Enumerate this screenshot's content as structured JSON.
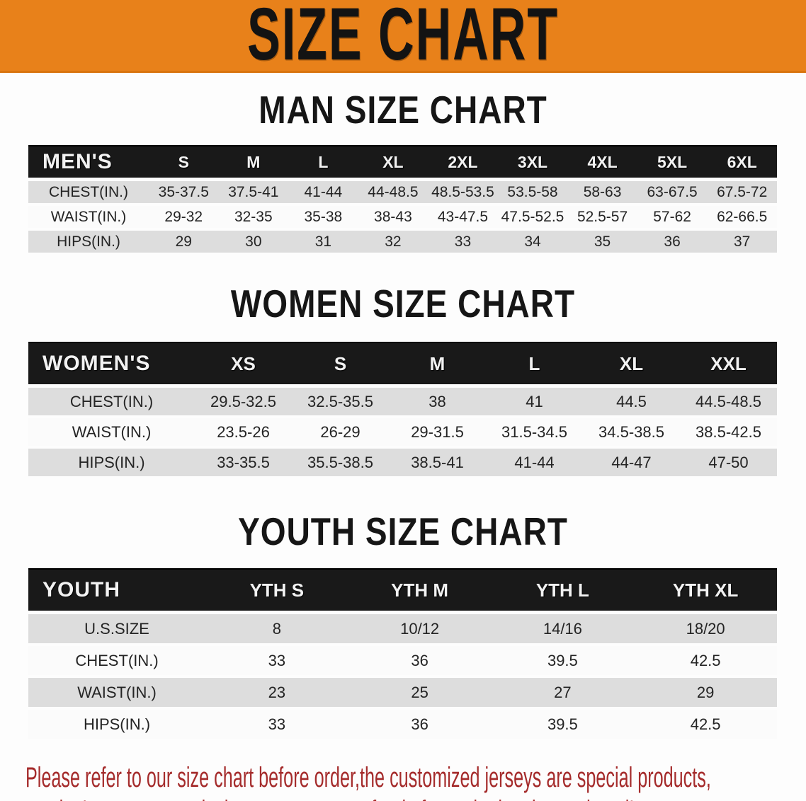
{
  "banner": {
    "title": "SIZE CHART",
    "bg_color": "#E8811A",
    "text_color": "#131313"
  },
  "chart_data": [
    {
      "type": "table",
      "title": "MAN SIZE CHART",
      "header_label": "MEN'S",
      "columns": [
        "S",
        "M",
        "L",
        "XL",
        "2XL",
        "3XL",
        "4XL",
        "5XL",
        "6XL"
      ],
      "rows": [
        {
          "label": "CHEST(IN.)",
          "values": [
            "35-37.5",
            "37.5-41",
            "41-44",
            "44-48.5",
            "48.5-53.5",
            "53.5-58",
            "58-63",
            "63-67.5",
            "67.5-72"
          ]
        },
        {
          "label": "WAIST(IN.)",
          "values": [
            "29-32",
            "32-35",
            "35-38",
            "38-43",
            "43-47.5",
            "47.5-52.5",
            "52.5-57",
            "57-62",
            "62-66.5"
          ]
        },
        {
          "label": "HIPS(IN.)",
          "values": [
            "29",
            "30",
            "31",
            "32",
            "33",
            "34",
            "35",
            "36",
            "37"
          ]
        }
      ]
    },
    {
      "type": "table",
      "title": "WOMEN SIZE CHART",
      "header_label": "WOMEN'S",
      "columns": [
        "XS",
        "S",
        "M",
        "L",
        "XL",
        "XXL"
      ],
      "rows": [
        {
          "label": "CHEST(IN.)",
          "values": [
            "29.5-32.5",
            "32.5-35.5",
            "38",
            "41",
            "44.5",
            "44.5-48.5"
          ]
        },
        {
          "label": "WAIST(IN.)",
          "values": [
            "23.5-26",
            "26-29",
            "29-31.5",
            "31.5-34.5",
            "34.5-38.5",
            "38.5-42.5"
          ]
        },
        {
          "label": "HIPS(IN.)",
          "values": [
            "33-35.5",
            "35.5-38.5",
            "38.5-41",
            "41-44",
            "44-47",
            "47-50"
          ]
        }
      ]
    },
    {
      "type": "table",
      "title": "YOUTH SIZE CHART",
      "header_label": "YOUTH",
      "columns": [
        "YTH S",
        "YTH M",
        "YTH L",
        "YTH XL"
      ],
      "rows": [
        {
          "label": "U.S.SIZE",
          "values": [
            "8",
            "10/12",
            "14/16",
            "18/20"
          ]
        },
        {
          "label": "CHEST(IN.)",
          "values": [
            "33",
            "36",
            "39.5",
            "42.5"
          ]
        },
        {
          "label": "WAIST(IN.)",
          "values": [
            "23",
            "25",
            "27",
            "29"
          ]
        },
        {
          "label": "HIPS(IN.)",
          "values": [
            "33",
            "36",
            "39.5",
            "42.5"
          ]
        }
      ]
    }
  ],
  "disclaimer": {
    "line1": "Please refer to our size chart before order,the customized jerseys are special products,",
    "line2": "we don't accept cancel, change, teturn or refund after order has been placed!",
    "color": "#A52C2C"
  }
}
